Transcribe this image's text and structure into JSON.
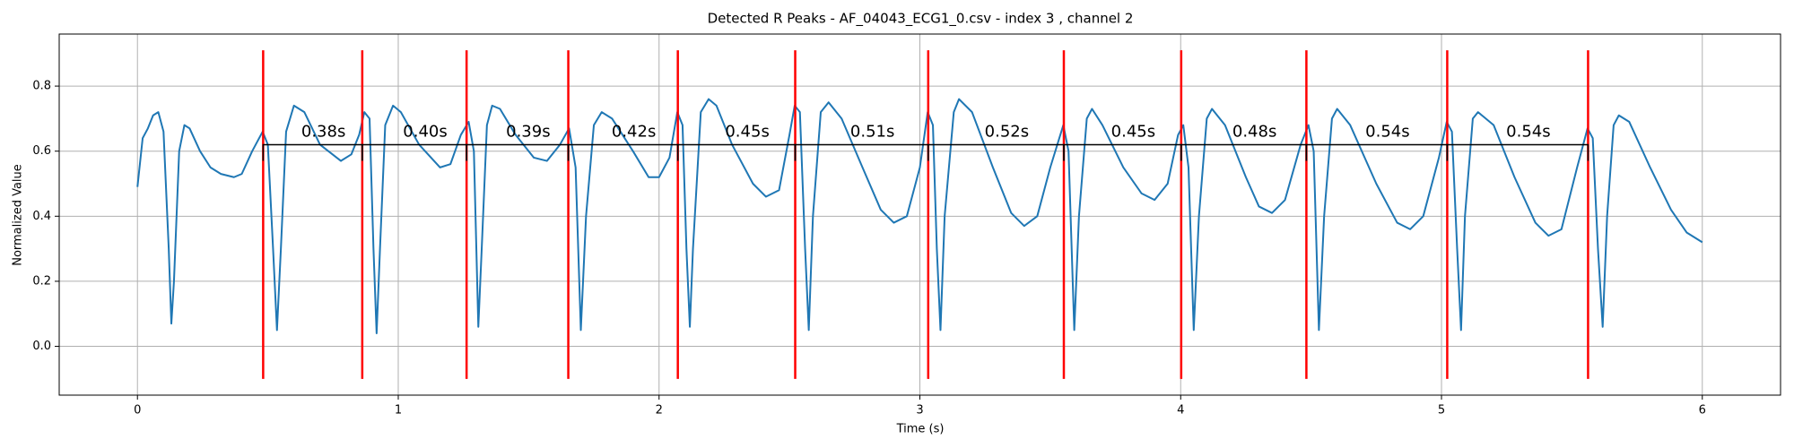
{
  "chart_data": {
    "type": "line",
    "title": "Detected R Peaks - AF_04043_ECG1_0.csv - index 3 , channel 2",
    "xlabel": "Time (s)",
    "ylabel": "Normalized Value",
    "xlim": [
      -0.3,
      6.3
    ],
    "ylim": [
      -0.15,
      0.96
    ],
    "xticks": [
      0,
      1,
      2,
      3,
      4,
      5,
      6
    ],
    "yticks": [
      {
        "value": 0,
        "label": "0.0"
      },
      0.2,
      0.4,
      0.6,
      0.8
    ],
    "grid": true,
    "x": [
      0,
      0.02,
      0.04,
      0.06,
      0.08,
      0.1,
      0.12,
      0.13,
      0.14,
      0.16,
      0.18,
      0.2,
      0.24,
      0.28,
      0.32,
      0.37,
      0.4,
      0.44,
      0.48,
      0.5,
      0.52,
      0.535,
      0.55,
      0.57,
      0.6,
      0.64,
      0.7,
      0.78,
      0.82,
      0.85,
      0.87,
      0.89,
      0.905,
      0.917,
      0.93,
      0.95,
      0.98,
      1.01,
      1.08,
      1.16,
      1.2,
      1.24,
      1.27,
      1.29,
      1.307,
      1.32,
      1.34,
      1.36,
      1.39,
      1.45,
      1.52,
      1.57,
      1.62,
      1.655,
      1.68,
      1.7,
      1.72,
      1.75,
      1.78,
      1.82,
      1.9,
      1.96,
      2.0,
      2.04,
      2.07,
      2.09,
      2.105,
      2.118,
      2.13,
      2.16,
      2.19,
      2.22,
      2.28,
      2.36,
      2.41,
      2.46,
      2.5,
      2.52,
      2.54,
      2.56,
      2.574,
      2.59,
      2.62,
      2.65,
      2.7,
      2.78,
      2.85,
      2.9,
      2.95,
      3.0,
      3.03,
      3.05,
      3.065,
      3.079,
      3.095,
      3.13,
      3.15,
      3.2,
      3.28,
      3.35,
      3.4,
      3.45,
      3.5,
      3.55,
      3.57,
      3.592,
      3.61,
      3.64,
      3.66,
      3.7,
      3.78,
      3.85,
      3.9,
      3.95,
      3.99,
      4.01,
      4.03,
      4.05,
      4.07,
      4.1,
      4.12,
      4.17,
      4.25,
      4.3,
      4.35,
      4.4,
      4.46,
      4.49,
      4.51,
      4.53,
      4.55,
      4.58,
      4.6,
      4.65,
      4.75,
      4.83,
      4.88,
      4.93,
      4.99,
      5.02,
      5.04,
      5.06,
      5.075,
      5.09,
      5.12,
      5.14,
      5.2,
      5.28,
      5.36,
      5.41,
      5.46,
      5.52,
      5.56,
      5.58,
      5.6,
      5.618,
      5.635,
      5.66,
      5.68,
      5.72,
      5.8,
      5.88,
      5.94,
      5.98,
      6.0
    ],
    "series": [
      {
        "color": "#1f77b4",
        "values": [
          0.49,
          0.64,
          0.67,
          0.71,
          0.72,
          0.66,
          0.3,
          0.07,
          0.2,
          0.6,
          0.68,
          0.67,
          0.6,
          0.55,
          0.53,
          0.52,
          0.53,
          0.6,
          0.66,
          0.62,
          0.3,
          0.05,
          0.3,
          0.66,
          0.74,
          0.72,
          0.62,
          0.57,
          0.59,
          0.65,
          0.72,
          0.7,
          0.3,
          0.04,
          0.3,
          0.68,
          0.74,
          0.72,
          0.62,
          0.55,
          0.56,
          0.65,
          0.69,
          0.6,
          0.06,
          0.3,
          0.68,
          0.74,
          0.73,
          0.65,
          0.58,
          0.57,
          0.62,
          0.67,
          0.55,
          0.05,
          0.4,
          0.68,
          0.72,
          0.7,
          0.6,
          0.52,
          0.52,
          0.58,
          0.72,
          0.68,
          0.3,
          0.06,
          0.3,
          0.72,
          0.76,
          0.74,
          0.62,
          0.5,
          0.46,
          0.48,
          0.65,
          0.74,
          0.72,
          0.3,
          0.05,
          0.4,
          0.72,
          0.75,
          0.7,
          0.55,
          0.42,
          0.38,
          0.4,
          0.55,
          0.72,
          0.68,
          0.3,
          0.05,
          0.4,
          0.72,
          0.76,
          0.72,
          0.55,
          0.41,
          0.37,
          0.4,
          0.55,
          0.68,
          0.6,
          0.05,
          0.4,
          0.7,
          0.73,
          0.68,
          0.55,
          0.47,
          0.45,
          0.5,
          0.65,
          0.68,
          0.55,
          0.05,
          0.4,
          0.7,
          0.73,
          0.68,
          0.52,
          0.43,
          0.41,
          0.45,
          0.62,
          0.68,
          0.6,
          0.05,
          0.4,
          0.7,
          0.73,
          0.68,
          0.5,
          0.38,
          0.36,
          0.4,
          0.58,
          0.69,
          0.66,
          0.3,
          0.05,
          0.4,
          0.7,
          0.72,
          0.68,
          0.52,
          0.38,
          0.34,
          0.36,
          0.55,
          0.67,
          0.64,
          0.3,
          0.06,
          0.4,
          0.68,
          0.71,
          0.69,
          0.55,
          0.42,
          0.35,
          0.33,
          0.32
        ]
      }
    ],
    "peaks": {
      "x": [
        0.482,
        0.862,
        1.262,
        1.652,
        2.072,
        2.522,
        3.032,
        3.552,
        4.002,
        4.482,
        5.022,
        5.562
      ],
      "ymin": -0.1,
      "ymax": 0.91,
      "color": "#ff0000"
    },
    "intervals": {
      "values": [
        0.38,
        0.4,
        0.39,
        0.42,
        0.45,
        0.51,
        0.52,
        0.45,
        0.48,
        0.54,
        0.54
      ],
      "value_labels": [
        "0.38s",
        "0.40s",
        "0.39s",
        "0.42s",
        "0.45s",
        "0.51s",
        "0.52s",
        "0.45s",
        "0.48s",
        "0.54s",
        "0.54s"
      ],
      "y": 0.62,
      "color": "#000000"
    }
  }
}
